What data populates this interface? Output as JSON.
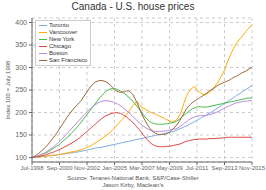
{
  "chart_data": {
    "type": "line",
    "title": "Canada - U.S. house prices",
    "ylabel": "Index 100 = July 1998",
    "annotations": [
      "Source: Teranet-National Bank, S&P/Case-Shiller\nJason Kirby, Maclean's"
    ],
    "x": [
      0,
      1,
      2,
      3,
      4,
      5,
      6,
      7,
      8,
      9,
      10,
      11,
      12,
      13,
      14,
      15,
      16,
      17,
      18,
      19,
      20,
      21,
      22,
      23,
      24,
      25,
      26,
      27,
      28,
      29,
      30,
      31,
      32,
      33,
      34,
      35,
      36,
      37,
      38,
      39,
      40,
      41,
      42,
      43,
      44,
      45,
      46,
      47,
      48,
      49,
      50,
      51,
      52,
      53,
      54,
      55,
      56,
      57,
      58,
      59,
      60,
      61,
      62,
      63,
      64,
      65,
      66,
      67,
      68,
      69,
      70,
      71,
      72,
      73,
      74,
      75,
      76,
      77,
      78,
      79,
      80,
      81,
      82,
      83,
      84,
      85,
      86,
      87,
      88,
      89,
      90,
      91,
      92,
      93,
      94,
      95,
      96,
      97,
      98,
      99,
      100,
      101,
      102,
      103,
      104,
      105,
      106,
      107
    ],
    "xlim": [
      0,
      107
    ],
    "xticks": [
      {
        "value": 0,
        "label": "Jul-1998"
      },
      {
        "value": 13.375,
        "label": "Sep-2000"
      },
      {
        "value": 26.75,
        "label": "Nov-2002"
      },
      {
        "value": 40.125,
        "label": "Jan-2005"
      },
      {
        "value": 53.5,
        "label": "Mar-2007"
      },
      {
        "value": 66.875,
        "label": "May-2009"
      },
      {
        "value": 80.25,
        "label": "Jul-2011"
      },
      {
        "value": 93.625,
        "label": "Sep-2013"
      },
      {
        "value": 107,
        "label": "Nov-2015"
      }
    ],
    "ylim": [
      90,
      410
    ],
    "yticks": [
      100,
      150,
      200,
      250,
      300,
      350,
      400
    ],
    "grid": true,
    "legend": "upper left",
    "series": [
      {
        "name": "Toronto",
        "color": "#7aabdb",
        "values": [
          100,
          100,
          101,
          101,
          102,
          102,
          103,
          103,
          104,
          104,
          105,
          105,
          106,
          107,
          107,
          108,
          108,
          109,
          110,
          110,
          111,
          112,
          112,
          113,
          114,
          115,
          116,
          117,
          118,
          119,
          120,
          121,
          122,
          122,
          123,
          124,
          125,
          126,
          127,
          128,
          129,
          130,
          131,
          132,
          133,
          134,
          135,
          136,
          137,
          138,
          139,
          140,
          141,
          142,
          143,
          144,
          145,
          146,
          147,
          148,
          149,
          150,
          151,
          152,
          153,
          154,
          155,
          156,
          157,
          158,
          160,
          162,
          164,
          166,
          168,
          170,
          172,
          175,
          177,
          180,
          182,
          185,
          187,
          190,
          192,
          195,
          198,
          200,
          203,
          206,
          209,
          212,
          215,
          218,
          221,
          224,
          227,
          230,
          233,
          236,
          239,
          242,
          245,
          248,
          251,
          254,
          257,
          260
        ]
      },
      {
        "name": "Vancouver",
        "color": "#ffaa00",
        "values": [
          100,
          100,
          101,
          101,
          102,
          102,
          103,
          103,
          104,
          104,
          105,
          105,
          106,
          106,
          107,
          108,
          109,
          110,
          111,
          112,
          113,
          114,
          115,
          116,
          117,
          119,
          121,
          123,
          125,
          127,
          130,
          133,
          136,
          139,
          142,
          145,
          148,
          152,
          156,
          160,
          165,
          170,
          175,
          180,
          185,
          190,
          196,
          202,
          208,
          215,
          220,
          225,
          218,
          213,
          210,
          208,
          205,
          202,
          200,
          198,
          196,
          194,
          192,
          190,
          188,
          185,
          183,
          181,
          179,
          180,
          183,
          188,
          196,
          208,
          222,
          235,
          244,
          250,
          255,
          258,
          252,
          247,
          244,
          241,
          239,
          241,
          244,
          248,
          252,
          258,
          265,
          272,
          280,
          288,
          298,
          312,
          322,
          333,
          342,
          350,
          357,
          363,
          368,
          374,
          380,
          385,
          390,
          395
        ]
      },
      {
        "name": "New York",
        "color": "#44bb44",
        "values": [
          100,
          101,
          102,
          103,
          105,
          107,
          109,
          111,
          113,
          116,
          119,
          122,
          125,
          128,
          132,
          136,
          140,
          144,
          148,
          153,
          158,
          163,
          168,
          173,
          179,
          185,
          191,
          197,
          203,
          209,
          215,
          221,
          227,
          233,
          238,
          243,
          247,
          250,
          252,
          253,
          253,
          252,
          250,
          248,
          245,
          242,
          238,
          234,
          230,
          225,
          220,
          214,
          208,
          202,
          196,
          190,
          185,
          181,
          178,
          176,
          175,
          174,
          174,
          174,
          174,
          175,
          175,
          176,
          177,
          178,
          180,
          183,
          186,
          190,
          194,
          198,
          202,
          205,
          208,
          210,
          212,
          213,
          213,
          212,
          212,
          212,
          213,
          214,
          215,
          216,
          217,
          218,
          219,
          220,
          221,
          222,
          223,
          224,
          225,
          226,
          227,
          228,
          229,
          230,
          231,
          232,
          232,
          233
        ]
      },
      {
        "name": "Chicago",
        "color": "#dd4444",
        "values": [
          100,
          101,
          101,
          102,
          103,
          104,
          105,
          107,
          108,
          110,
          111,
          113,
          115,
          117,
          119,
          121,
          124,
          126,
          129,
          131,
          134,
          137,
          140,
          143,
          147,
          151,
          155,
          159,
          163,
          167,
          171,
          175,
          179,
          183,
          187,
          190,
          193,
          195,
          197,
          198,
          199,
          200,
          199,
          198,
          196,
          193,
          190,
          186,
          182,
          178,
          173,
          168,
          163,
          157,
          151,
          146,
          140,
          135,
          131,
          128,
          126,
          125,
          124,
          124,
          124,
          124,
          125,
          125,
          126,
          127,
          128,
          129,
          130,
          132,
          134,
          136,
          137,
          138,
          139,
          140,
          140,
          141,
          141,
          141,
          141,
          141,
          142,
          142,
          142,
          142,
          143,
          143,
          143,
          144,
          144,
          145,
          145,
          145,
          145,
          145,
          145,
          145,
          145,
          145,
          145,
          145,
          145,
          145
        ]
      },
      {
        "name": "Boston",
        "color": "#bb88dd",
        "values": [
          100,
          101,
          102,
          104,
          106,
          108,
          110,
          113,
          116,
          119,
          122,
          126,
          130,
          134,
          138,
          143,
          148,
          153,
          158,
          163,
          168,
          173,
          178,
          183,
          188,
          193,
          198,
          203,
          207,
          211,
          215,
          218,
          221,
          223,
          225,
          226,
          226,
          226,
          225,
          224,
          222,
          220,
          218,
          215,
          212,
          208,
          204,
          200,
          196,
          191,
          187,
          182,
          178,
          174,
          170,
          167,
          164,
          162,
          160,
          159,
          158,
          158,
          158,
          158,
          159,
          159,
          160,
          161,
          162,
          163,
          164,
          166,
          169,
          172,
          176,
          179,
          183,
          186,
          188,
          190,
          191,
          192,
          193,
          193,
          193,
          194,
          195,
          196,
          197,
          199,
          201,
          203,
          206,
          208,
          211,
          213,
          215,
          217,
          219,
          221,
          222,
          223,
          224,
          225,
          225,
          226,
          226,
          227
        ]
      },
      {
        "name": "San Francisco",
        "color": "#996633",
        "values": [
          100,
          102,
          105,
          108,
          112,
          116,
          120,
          125,
          130,
          136,
          142,
          148,
          154,
          161,
          168,
          175,
          182,
          189,
          195,
          201,
          207,
          212,
          217,
          222,
          227,
          234,
          241,
          248,
          254,
          260,
          265,
          268,
          270,
          271,
          271,
          270,
          268,
          265,
          261,
          257,
          252,
          248,
          246,
          245,
          245,
          246,
          248,
          248,
          245,
          240,
          232,
          222,
          212,
          201,
          191,
          182,
          174,
          167,
          161,
          157,
          154,
          152,
          151,
          151,
          151,
          152,
          154,
          157,
          161,
          165,
          170,
          176,
          183,
          191,
          199,
          207,
          213,
          218,
          222,
          225,
          228,
          231,
          234,
          237,
          240,
          243,
          247,
          250,
          253,
          256,
          259,
          262,
          264,
          266,
          268,
          270,
          272,
          275,
          278,
          280,
          282,
          285,
          288,
          290,
          292,
          295,
          298,
          300
        ]
      }
    ]
  }
}
